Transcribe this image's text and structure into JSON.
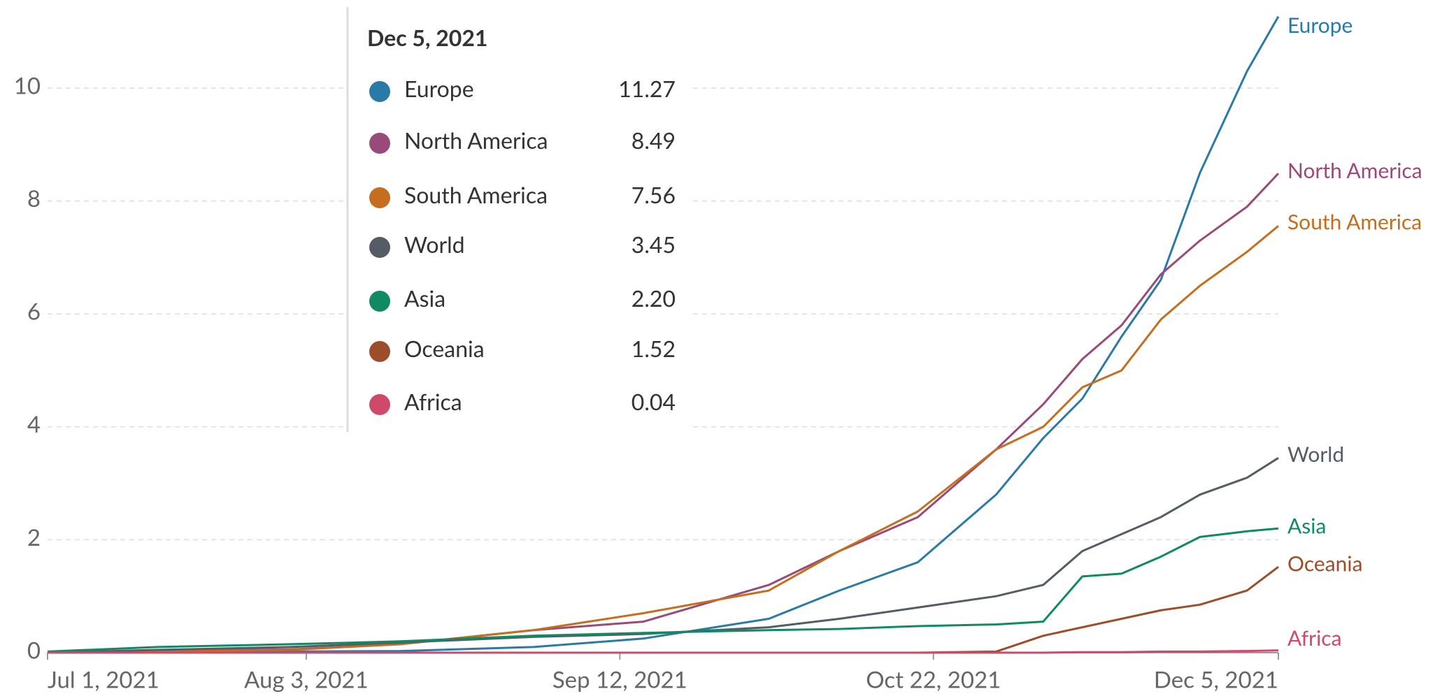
{
  "chart_data": {
    "type": "line",
    "x": [
      "Jul 1, 2021",
      "Jul 15, 2021",
      "Aug 1, 2021",
      "Aug 15, 2021",
      "Sep 1, 2021",
      "Sep 15, 2021",
      "Oct 1, 2021",
      "Oct 10, 2021",
      "Oct 20, 2021",
      "Oct 30, 2021",
      "Nov 5, 2021",
      "Nov 10, 2021",
      "Nov 15, 2021",
      "Nov 20, 2021",
      "Nov 25, 2021",
      "Dec 1, 2021",
      "Dec 5, 2021"
    ],
    "series": [
      {
        "name": "Europe",
        "color": "#2a7aa8",
        "values": [
          0,
          0.01,
          0.02,
          0.03,
          0.1,
          0.25,
          0.6,
          1.1,
          1.6,
          2.8,
          3.8,
          4.5,
          5.6,
          6.6,
          8.5,
          10.3,
          11.27
        ],
        "value_labels": [
          null,
          null,
          null,
          null,
          null,
          null,
          null,
          null,
          null,
          null,
          null,
          null,
          null,
          null,
          null,
          null,
          "11.27"
        ]
      },
      {
        "name": "North America",
        "color": "#9a4a78",
        "values": [
          0,
          0.03,
          0.06,
          0.15,
          0.4,
          0.55,
          1.2,
          1.8,
          2.4,
          3.6,
          4.4,
          5.2,
          5.8,
          6.7,
          7.3,
          7.9,
          8.49
        ],
        "value_labels": [
          null,
          null,
          null,
          null,
          null,
          null,
          null,
          null,
          null,
          null,
          null,
          null,
          null,
          null,
          null,
          null,
          "8.49"
        ]
      },
      {
        "name": "South America",
        "color": "#c46e1e",
        "values": [
          0,
          0.02,
          0.05,
          0.15,
          0.4,
          0.7,
          1.1,
          1.8,
          2.5,
          3.6,
          4.0,
          4.7,
          5.0,
          5.9,
          6.5,
          7.1,
          7.56
        ],
        "value_labels": [
          null,
          null,
          null,
          null,
          null,
          null,
          null,
          null,
          null,
          null,
          null,
          null,
          null,
          null,
          null,
          null,
          "7.56"
        ]
      },
      {
        "name": "World",
        "color": "#555c66",
        "values": [
          0,
          0.05,
          0.1,
          0.18,
          0.28,
          0.33,
          0.45,
          0.6,
          0.8,
          1.0,
          1.2,
          1.8,
          2.1,
          2.4,
          2.8,
          3.1,
          3.45
        ],
        "value_labels": [
          null,
          null,
          null,
          null,
          null,
          null,
          null,
          null,
          null,
          null,
          null,
          null,
          null,
          null,
          null,
          null,
          "3.45"
        ]
      },
      {
        "name": "Asia",
        "color": "#108a64",
        "values": [
          0.02,
          0.1,
          0.15,
          0.2,
          0.3,
          0.35,
          0.4,
          0.42,
          0.47,
          0.5,
          0.55,
          1.35,
          1.4,
          1.7,
          2.05,
          2.15,
          2.2
        ],
        "value_labels": [
          null,
          null,
          null,
          null,
          null,
          null,
          null,
          null,
          null,
          null,
          null,
          null,
          null,
          null,
          null,
          null,
          "2.20"
        ]
      },
      {
        "name": "Oceania",
        "color": "#9c4e2a",
        "values": [
          0,
          0,
          0,
          0,
          0,
          0,
          0,
          0,
          0,
          0.02,
          0.3,
          0.45,
          0.6,
          0.75,
          0.85,
          1.1,
          1.52
        ],
        "value_labels": [
          null,
          null,
          null,
          null,
          null,
          null,
          null,
          null,
          null,
          null,
          null,
          null,
          null,
          null,
          null,
          null,
          "1.52"
        ]
      },
      {
        "name": "Africa",
        "color": "#cf4a6a",
        "values": [
          0,
          0,
          0,
          0,
          0,
          0,
          0,
          0,
          0,
          0,
          0,
          0.01,
          0.01,
          0.02,
          0.02,
          0.03,
          0.04
        ],
        "value_labels": [
          null,
          null,
          null,
          null,
          null,
          null,
          null,
          null,
          null,
          null,
          null,
          null,
          null,
          null,
          null,
          null,
          "0.04"
        ]
      }
    ],
    "xticks": [
      "Jul 1, 2021",
      "Aug 3, 2021",
      "Sep 12, 2021",
      "Oct 22, 2021",
      "Dec 5, 2021"
    ],
    "ylim": [
      0,
      11.5
    ],
    "yticks": [
      0,
      2,
      4,
      6,
      8,
      10
    ],
    "grid": true
  }
}
